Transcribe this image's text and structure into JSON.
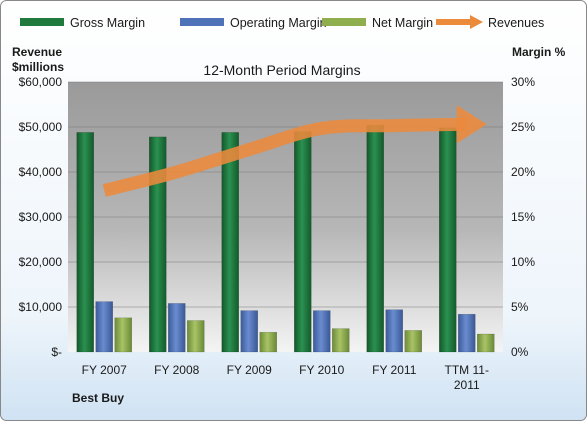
{
  "chart_data": {
    "type": "bar",
    "title": "12-Month Period Margins",
    "company": "Best Buy",
    "y_left_label_line1": "Revenue",
    "y_left_label_line2": "$millions",
    "y_right_label": "Margin %",
    "categories": [
      "FY 2007",
      "FY 2008",
      "FY 2009",
      "FY 2010",
      "FY 2011",
      "TTM 11-2011"
    ],
    "category_labels": [
      [
        "FY 2007"
      ],
      [
        "FY 2008"
      ],
      [
        "FY 2009"
      ],
      [
        "FY 2010"
      ],
      [
        "FY 2011"
      ],
      [
        "TTM 11-",
        "2011"
      ]
    ],
    "ylim_left": [
      0,
      60000
    ],
    "ylim_right": [
      0,
      30
    ],
    "left_ticks": [
      "$-",
      "$10,000",
      "$20,000",
      "$30,000",
      "$40,000",
      "$50,000",
      "$60,000"
    ],
    "right_ticks": [
      "0%",
      "5%",
      "10%",
      "15%",
      "20%",
      "25%",
      "30%"
    ],
    "series": [
      {
        "name": "Gross Margin",
        "axis": "right",
        "unit": "%",
        "color": "#1f7a3c",
        "values": [
          24.4,
          23.9,
          24.4,
          24.5,
          25.2,
          24.9
        ]
      },
      {
        "name": "Operating Margin",
        "axis": "right",
        "unit": "%",
        "color": "#4f72b8",
        "values": [
          5.6,
          5.4,
          4.6,
          4.6,
          4.7,
          4.2
        ]
      },
      {
        "name": "Net Margin",
        "axis": "right",
        "unit": "%",
        "color": "#8fae4e",
        "values": [
          3.8,
          3.5,
          2.2,
          2.6,
          2.4,
          2.0
        ]
      },
      {
        "name": "Revenues",
        "axis": "left",
        "unit": "$millions",
        "color": "#ec8a3c",
        "values": [
          35900,
          40000,
          45000,
          49700,
          50300,
          50600
        ]
      }
    ]
  }
}
